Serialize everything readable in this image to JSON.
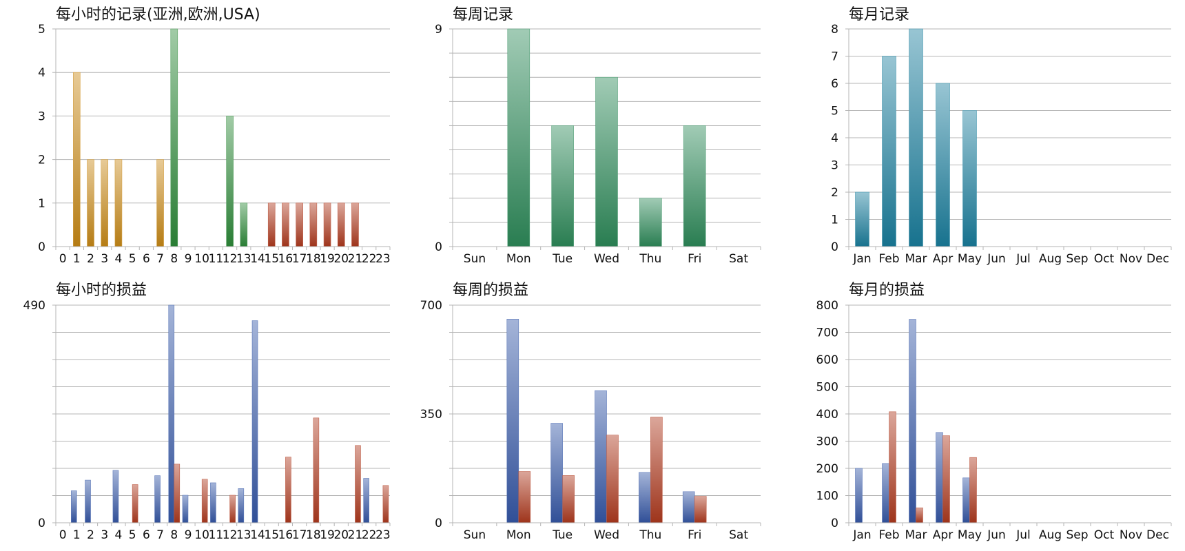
{
  "chart_data": [
    {
      "type": "bar",
      "title": "每小时的记录(亚洲,欧洲,USA)",
      "categories": [
        "0",
        "1",
        "2",
        "3",
        "4",
        "5",
        "6",
        "7",
        "8",
        "9",
        "10",
        "11",
        "12",
        "13",
        "14",
        "15",
        "16",
        "17",
        "18",
        "19",
        "20",
        "21",
        "22",
        "23"
      ],
      "series": [
        {
          "values": [
            0,
            4,
            2,
            2,
            2,
            0,
            0,
            2,
            0,
            0,
            0,
            0,
            0,
            0,
            0,
            0,
            0,
            0,
            0,
            0,
            0,
            0,
            0,
            0
          ],
          "color": "#c98a16"
        },
        {
          "values": [
            0,
            0,
            0,
            0,
            0,
            0,
            0,
            0,
            5,
            0,
            0,
            0,
            3,
            1,
            0,
            0,
            0,
            0,
            0,
            0,
            0,
            0,
            0,
            0
          ],
          "color": "#2e8b3a"
        },
        {
          "values": [
            0,
            0,
            0,
            0,
            0,
            0,
            0,
            0,
            0,
            0,
            0,
            0,
            0,
            0,
            0,
            1,
            1,
            1,
            1,
            1,
            1,
            1,
            0,
            0
          ],
          "color": "#b03a1e"
        }
      ],
      "ylim": [
        0,
        5
      ],
      "yticks": [
        0,
        1,
        2,
        3,
        4,
        5
      ],
      "ytick_labels": [
        "0",
        "1",
        "2",
        "3",
        "4",
        "5"
      ],
      "grid": true
    },
    {
      "type": "bar",
      "title": "每周记录",
      "categories": [
        "Sun",
        "Mon",
        "Tue",
        "Wed",
        "Thu",
        "Fri",
        "Sat"
      ],
      "series": [
        {
          "values": [
            0,
            9,
            5,
            7,
            2,
            5,
            0
          ],
          "color": "#2e8b5a"
        }
      ],
      "ylim": [
        0,
        9
      ],
      "yticks": [
        0,
        1,
        2,
        3,
        4,
        5,
        6,
        7,
        8,
        9
      ],
      "ytick_labels": [
        "0",
        "",
        "",
        "",
        "",
        "",
        "",
        "",
        "",
        "9"
      ],
      "grid": true
    },
    {
      "type": "bar",
      "title": "每月记录",
      "categories": [
        "Jan",
        "Feb",
        "Mar",
        "Apr",
        "May",
        "Jun",
        "Jul",
        "Aug",
        "Sep",
        "Oct",
        "Nov",
        "Dec"
      ],
      "series": [
        {
          "values": [
            2,
            7,
            8,
            6,
            5,
            0,
            0,
            0,
            0,
            0,
            0,
            0
          ],
          "color": "#1a7f9e"
        }
      ],
      "ylim": [
        0,
        8
      ],
      "yticks": [
        0,
        1,
        2,
        3,
        4,
        5,
        6,
        7,
        8
      ],
      "ytick_labels": [
        "0",
        "1",
        "2",
        "3",
        "4",
        "5",
        "6",
        "7",
        "8"
      ],
      "grid": true
    },
    {
      "type": "bar",
      "title": "每小时的损益",
      "categories": [
        "0",
        "1",
        "2",
        "3",
        "4",
        "5",
        "6",
        "7",
        "8",
        "9",
        "10",
        "11",
        "12",
        "13",
        "14",
        "15",
        "16",
        "17",
        "18",
        "19",
        "20",
        "21",
        "22",
        "23"
      ],
      "series": [
        {
          "values": [
            0,
            72,
            96,
            0,
            118,
            0,
            0,
            106,
            490,
            62,
            0,
            90,
            0,
            77,
            455,
            0,
            0,
            0,
            0,
            0,
            0,
            0,
            100,
            0
          ],
          "color": "#3558a8"
        },
        {
          "values": [
            0,
            0,
            0,
            0,
            0,
            86,
            0,
            0,
            132,
            0,
            98,
            0,
            62,
            0,
            0,
            0,
            148,
            0,
            236,
            0,
            0,
            174,
            0,
            84
          ],
          "color": "#b03a1e"
        }
      ],
      "ylim": [
        0,
        490
      ],
      "yticks": [
        0,
        61.25,
        122.5,
        183.75,
        245,
        306.25,
        367.5,
        428.75,
        490
      ],
      "ytick_labels": [
        "0",
        "",
        "",
        "",
        "",
        "",
        "",
        "",
        "490"
      ],
      "grid": true
    },
    {
      "type": "bar",
      "title": "每周的损益",
      "categories": [
        "Sun",
        "Mon",
        "Tue",
        "Wed",
        "Thu",
        "Fri",
        "Sat"
      ],
      "series": [
        {
          "values": [
            0,
            655,
            320,
            425,
            162,
            100,
            0
          ],
          "color": "#3558a8"
        },
        {
          "values": [
            0,
            165,
            152,
            282,
            340,
            85,
            0
          ],
          "color": "#b03a1e"
        }
      ],
      "ylim": [
        0,
        700
      ],
      "yticks": [
        0,
        87.5,
        175,
        262.5,
        350,
        437.5,
        525,
        612.5,
        700
      ],
      "ytick_labels": [
        "0",
        "",
        "",
        "",
        "350",
        "",
        "",
        "",
        "700"
      ],
      "grid": true
    },
    {
      "type": "bar",
      "title": "每月的损益",
      "categories": [
        "Jan",
        "Feb",
        "Mar",
        "Apr",
        "May",
        "Jun",
        "Jul",
        "Aug",
        "Sep",
        "Oct",
        "Nov",
        "Dec"
      ],
      "series": [
        {
          "values": [
            200,
            218,
            748,
            332,
            165,
            0,
            0,
            0,
            0,
            0,
            0,
            0
          ],
          "color": "#3558a8"
        },
        {
          "values": [
            0,
            408,
            55,
            320,
            240,
            0,
            0,
            0,
            0,
            0,
            0,
            0
          ],
          "color": "#b03a1e"
        }
      ],
      "ylim": [
        0,
        800
      ],
      "yticks": [
        0,
        100,
        200,
        300,
        400,
        500,
        600,
        700,
        800
      ],
      "ytick_labels": [
        "0",
        "100",
        "200",
        "300",
        "400",
        "500",
        "600",
        "700",
        "800"
      ],
      "grid": true
    }
  ]
}
